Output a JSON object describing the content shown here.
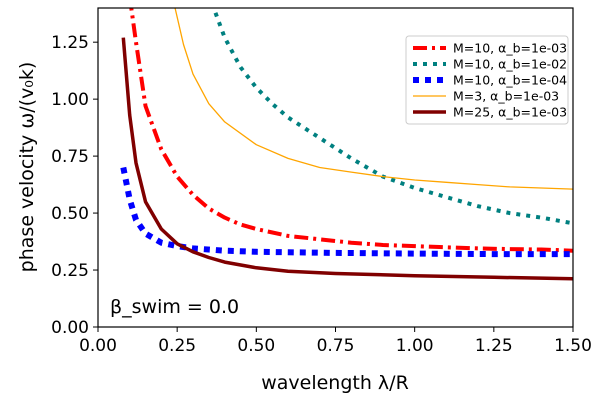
{
  "chart_data": {
    "type": "line",
    "xlabel": "wavelength λ/R",
    "ylabel": "phase velocity ω/(v₀k)",
    "xlim": [
      0.0,
      1.5
    ],
    "ylim": [
      0.0,
      1.4
    ],
    "xticks": [
      "0.00",
      "0.25",
      "0.50",
      "0.75",
      "1.00",
      "1.25",
      "1.50"
    ],
    "yticks": [
      "0.00",
      "0.25",
      "0.50",
      "0.75",
      "1.00",
      "1.25"
    ],
    "grid": false,
    "legend_position": "top-right",
    "annotation": "β_swim = 0.0",
    "series": [
      {
        "name": "M=10, α_b=1e-03",
        "color": "#ff0000",
        "dash": "dash-dot",
        "width": 4,
        "x": [
          0.1,
          0.12,
          0.15,
          0.2,
          0.25,
          0.3,
          0.35,
          0.4,
          0.45,
          0.5,
          0.6,
          0.7,
          0.8,
          0.9,
          1.0,
          1.1,
          1.2,
          1.3,
          1.4,
          1.5
        ],
        "y": [
          1.45,
          1.25,
          0.97,
          0.78,
          0.66,
          0.58,
          0.52,
          0.48,
          0.45,
          0.43,
          0.4,
          0.385,
          0.37,
          0.36,
          0.355,
          0.35,
          0.345,
          0.342,
          0.34,
          0.335
        ]
      },
      {
        "name": "M=10, α_b=1e-02",
        "color": "#008080",
        "dash": "dotted",
        "width": 4,
        "x": [
          0.36,
          0.4,
          0.45,
          0.5,
          0.55,
          0.6,
          0.7,
          0.8,
          0.9,
          1.0,
          1.1,
          1.2,
          1.3,
          1.4,
          1.5
        ],
        "y": [
          1.42,
          1.27,
          1.14,
          1.05,
          0.98,
          0.92,
          0.83,
          0.74,
          0.66,
          0.61,
          0.57,
          0.53,
          0.5,
          0.48,
          0.455
        ]
      },
      {
        "name": "M=10, α_b=1e-04",
        "color": "#0000ff",
        "dash": "dotted",
        "width": 6,
        "x": [
          0.08,
          0.1,
          0.12,
          0.15,
          0.2,
          0.25,
          0.3,
          0.4,
          0.5,
          0.75,
          1.0,
          1.25,
          1.5
        ],
        "y": [
          0.7,
          0.56,
          0.47,
          0.41,
          0.37,
          0.355,
          0.345,
          0.335,
          0.33,
          0.325,
          0.322,
          0.32,
          0.32
        ]
      },
      {
        "name": "M=3, α_b=1e-03",
        "color": "#ffa500",
        "dash": "solid",
        "width": 1.3,
        "x": [
          0.24,
          0.27,
          0.3,
          0.35,
          0.4,
          0.5,
          0.6,
          0.7,
          0.8,
          0.9,
          1.0,
          1.1,
          1.2,
          1.3,
          1.4,
          1.5
        ],
        "y": [
          1.42,
          1.24,
          1.11,
          0.98,
          0.9,
          0.8,
          0.74,
          0.7,
          0.68,
          0.66,
          0.645,
          0.635,
          0.625,
          0.615,
          0.61,
          0.605
        ]
      },
      {
        "name": "M=25, α_b=1e-03",
        "color": "#800000",
        "dash": "solid",
        "width": 3.5,
        "x": [
          0.08,
          0.1,
          0.12,
          0.15,
          0.2,
          0.25,
          0.3,
          0.35,
          0.4,
          0.5,
          0.6,
          0.75,
          1.0,
          1.25,
          1.5
        ],
        "y": [
          1.27,
          0.93,
          0.72,
          0.55,
          0.43,
          0.365,
          0.33,
          0.305,
          0.285,
          0.26,
          0.245,
          0.235,
          0.225,
          0.218,
          0.212
        ]
      }
    ]
  }
}
